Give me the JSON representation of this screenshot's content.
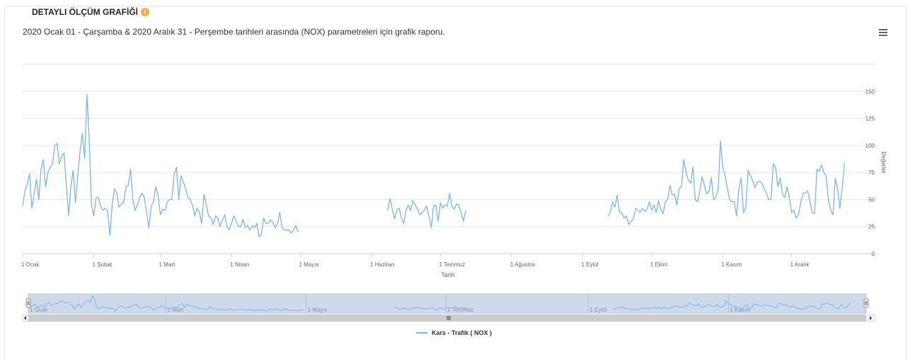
{
  "panel": {
    "title": "DETAYLI ÖLÇÜM GRAFİĞİ",
    "badge": "i"
  },
  "subtitle": "2020 Ocak 01 - Çarşamba & 2020 Aralık 31 - Perşembe tarihleri arasında (NOX) parametreleri için grafik raporu.",
  "menu_icon": "hamburger-menu-icon",
  "colors": {
    "series": "#7cb5ec",
    "navigator_mask": "#cfd9ec",
    "grid": "#e6e6e6"
  },
  "chart_data": {
    "type": "line",
    "title": "",
    "xlabel": "Tarih",
    "ylabel": "Değerler",
    "ylim": [
      0,
      175
    ],
    "yticks": [
      0,
      25,
      50,
      75,
      100,
      125,
      150
    ],
    "xlim_days": [
      0,
      365
    ],
    "xtick_labels": [
      {
        "label": "1 Ocak",
        "day": 0
      },
      {
        "label": "1 Şubat",
        "day": 31
      },
      {
        "label": "1 Mart",
        "day": 60
      },
      {
        "label": "1 Nisan",
        "day": 91
      },
      {
        "label": "1 Mayıs",
        "day": 121
      },
      {
        "label": "1 Haziran",
        "day": 152
      },
      {
        "label": "1 Temmuz",
        "day": 182
      },
      {
        "label": "1 Ağustos",
        "day": 213
      },
      {
        "label": "1 Eylül",
        "day": 244
      },
      {
        "label": "1 Ekim",
        "day": 274
      },
      {
        "label": "1 Kasım",
        "day": 305
      },
      {
        "label": "1 Aralık",
        "day": 335
      }
    ],
    "navigator_labels": [
      {
        "label": "1 Ocak",
        "day": 0
      },
      {
        "label": "1 Mart",
        "day": 60
      },
      {
        "label": "1 Mayıs",
        "day": 121
      },
      {
        "label": "1 Temmuz",
        "day": 182
      },
      {
        "label": "1 Eylül",
        "day": 244
      },
      {
        "label": "1 Kasım",
        "day": 305
      }
    ],
    "grid": true,
    "legend_position": "bottom-center",
    "series": [
      {
        "name": "Kars - Trafik ( NOX )",
        "segments": [
          [
            [
              0,
              44
            ],
            [
              1,
              58
            ],
            [
              2,
              64
            ],
            [
              3,
              74
            ],
            [
              4,
              42
            ],
            [
              5,
              55
            ],
            [
              6,
              69
            ],
            [
              7,
              50
            ],
            [
              8,
              78
            ],
            [
              9,
              87
            ],
            [
              10,
              62
            ],
            [
              11,
              75
            ],
            [
              12,
              80
            ],
            [
              13,
              83
            ],
            [
              14,
              100
            ],
            [
              15,
              102
            ],
            [
              16,
              83
            ],
            [
              17,
              90
            ],
            [
              18,
              93
            ],
            [
              19,
              65
            ],
            [
              20,
              35
            ],
            [
              21,
              62
            ],
            [
              22,
              77
            ],
            [
              23,
              47
            ],
            [
              24,
              72
            ],
            [
              25,
              95
            ],
            [
              26,
              111
            ],
            [
              27,
              88
            ],
            [
              28,
              147
            ],
            [
              29,
              105
            ],
            [
              30,
              45
            ],
            [
              31,
              35
            ],
            [
              32,
              52
            ],
            [
              33,
              52
            ],
            [
              34,
              44
            ],
            [
              35,
              40
            ],
            [
              36,
              42
            ],
            [
              37,
              40
            ],
            [
              38,
              17
            ],
            [
              39,
              45
            ],
            [
              40,
              60
            ],
            [
              41,
              56
            ],
            [
              42,
              43
            ],
            [
              43,
              46
            ],
            [
              44,
              47
            ],
            [
              45,
              62
            ],
            [
              46,
              63
            ],
            [
              47,
              78
            ],
            [
              48,
              50
            ],
            [
              49,
              40
            ],
            [
              50,
              45
            ],
            [
              51,
              52
            ],
            [
              52,
              56
            ],
            [
              53,
              52
            ],
            [
              54,
              38
            ],
            [
              55,
              24
            ],
            [
              56,
              44
            ],
            [
              57,
              48
            ],
            [
              58,
              62
            ],
            [
              59,
              54
            ],
            [
              60,
              36
            ],
            [
              61,
              41
            ],
            [
              62,
              40
            ],
            [
              63,
              48
            ],
            [
              64,
              50
            ],
            [
              65,
              50
            ],
            [
              66,
              73
            ],
            [
              67,
              80
            ],
            [
              68,
              50
            ],
            [
              69,
              72
            ],
            [
              70,
              66
            ],
            [
              71,
              60
            ],
            [
              72,
              52
            ],
            [
              73,
              50
            ],
            [
              74,
              45
            ],
            [
              75,
              35
            ],
            [
              76,
              42
            ],
            [
              77,
              38
            ],
            [
              78,
              28
            ],
            [
              79,
              55
            ],
            [
              80,
              45
            ],
            [
              81,
              35
            ],
            [
              82,
              33
            ],
            [
              83,
              27
            ],
            [
              84,
              35
            ],
            [
              85,
              33
            ],
            [
              86,
              25
            ],
            [
              87,
              31
            ],
            [
              88,
              36
            ],
            [
              89,
              25
            ],
            [
              90,
              22
            ],
            [
              91,
              28
            ],
            [
              92,
              35
            ],
            [
              93,
              30
            ],
            [
              94,
              25
            ],
            [
              95,
              25
            ],
            [
              96,
              32
            ],
            [
              97,
              24
            ],
            [
              98,
              26
            ],
            [
              99,
              22
            ],
            [
              100,
              26
            ],
            [
              101,
              24
            ],
            [
              102,
              28
            ],
            [
              103,
              16
            ],
            [
              104,
              18
            ],
            [
              105,
              33
            ],
            [
              106,
              28
            ],
            [
              107,
              28
            ],
            [
              108,
              31
            ],
            [
              109,
              29
            ],
            [
              110,
              24
            ],
            [
              111,
              28
            ],
            [
              112,
              38
            ],
            [
              113,
              24
            ],
            [
              114,
              22
            ],
            [
              115,
              22
            ],
            [
              116,
              22
            ],
            [
              117,
              19
            ],
            [
              118,
              22
            ],
            [
              119,
              26
            ],
            [
              120,
              20
            ]
          ],
          [
            [
              159,
              40
            ],
            [
              160,
              51
            ],
            [
              161,
              41
            ],
            [
              162,
              32
            ],
            [
              163,
              40
            ],
            [
              164,
              42
            ],
            [
              165,
              33
            ],
            [
              166,
              28
            ],
            [
              167,
              40
            ],
            [
              168,
              45
            ],
            [
              169,
              40
            ],
            [
              170,
              49
            ],
            [
              171,
              45
            ],
            [
              172,
              41
            ],
            [
              173,
              36
            ],
            [
              174,
              38
            ],
            [
              175,
              40
            ],
            [
              176,
              44
            ],
            [
              177,
              34
            ],
            [
              178,
              24
            ],
            [
              179,
              44
            ],
            [
              180,
              45
            ],
            [
              181,
              30
            ],
            [
              182,
              47
            ],
            [
              183,
              42
            ],
            [
              184,
              45
            ],
            [
              185,
              44
            ],
            [
              186,
              56
            ],
            [
              187,
              44
            ],
            [
              188,
              41
            ],
            [
              189,
              46
            ],
            [
              190,
              45
            ],
            [
              191,
              38
            ],
            [
              192,
              30
            ],
            [
              193,
              40
            ]
          ],
          [
            [
              255,
              35
            ],
            [
              256,
              38
            ],
            [
              257,
              48
            ],
            [
              258,
              43
            ],
            [
              259,
              54
            ],
            [
              260,
              38
            ],
            [
              261,
              38
            ],
            [
              262,
              33
            ],
            [
              263,
              35
            ],
            [
              264,
              27
            ],
            [
              265,
              30
            ],
            [
              266,
              32
            ],
            [
              267,
              42
            ],
            [
              268,
              40
            ],
            [
              269,
              38
            ],
            [
              270,
              42
            ],
            [
              271,
              39
            ],
            [
              272,
              41
            ],
            [
              273,
              48
            ],
            [
              274,
              40
            ],
            [
              275,
              45
            ],
            [
              276,
              38
            ],
            [
              277,
              49
            ],
            [
              278,
              41
            ],
            [
              279,
              37
            ],
            [
              280,
              48
            ],
            [
              281,
              50
            ],
            [
              282,
              63
            ],
            [
              283,
              54
            ],
            [
              284,
              55
            ],
            [
              285,
              45
            ],
            [
              286,
              60
            ],
            [
              287,
              62
            ],
            [
              288,
              87
            ],
            [
              289,
              75
            ],
            [
              290,
              68
            ],
            [
              291,
              65
            ],
            [
              292,
              80
            ],
            [
              293,
              50
            ],
            [
              294,
              48
            ],
            [
              295,
              58
            ],
            [
              296,
              71
            ],
            [
              297,
              63
            ],
            [
              298,
              55
            ],
            [
              299,
              58
            ],
            [
              300,
              70
            ],
            [
              301,
              50
            ],
            [
              302,
              52
            ],
            [
              303,
              60
            ],
            [
              304,
              104
            ],
            [
              305,
              80
            ],
            [
              306,
              72
            ],
            [
              307,
              60
            ],
            [
              308,
              50
            ],
            [
              309,
              48
            ],
            [
              310,
              48
            ],
            [
              311,
              35
            ],
            [
              312,
              60
            ],
            [
              313,
              70
            ],
            [
              314,
              38
            ],
            [
              315,
              42
            ],
            [
              316,
              77
            ],
            [
              317,
              72
            ],
            [
              318,
              68
            ],
            [
              319,
              61
            ],
            [
              320,
              66
            ],
            [
              321,
              67
            ],
            [
              322,
              65
            ],
            [
              323,
              60
            ],
            [
              324,
              56
            ],
            [
              325,
              50
            ],
            [
              326,
              50
            ],
            [
              327,
              83
            ],
            [
              328,
              80
            ],
            [
              329,
              62
            ],
            [
              330,
              70
            ],
            [
              331,
              55
            ],
            [
              332,
              52
            ],
            [
              333,
              62
            ],
            [
              334,
              52
            ],
            [
              335,
              38
            ],
            [
              336,
              40
            ],
            [
              337,
              33
            ],
            [
              338,
              36
            ],
            [
              339,
              48
            ],
            [
              340,
              56
            ],
            [
              341,
              56
            ],
            [
              342,
              58
            ],
            [
              343,
              48
            ],
            [
              344,
              38
            ],
            [
              345,
              37
            ],
            [
              346,
              78
            ],
            [
              347,
              76
            ],
            [
              348,
              82
            ],
            [
              349,
              75
            ],
            [
              350,
              72
            ],
            [
              351,
              50
            ],
            [
              352,
              40
            ],
            [
              353,
              36
            ],
            [
              354,
              70
            ],
            [
              355,
              60
            ],
            [
              356,
              42
            ],
            [
              357,
              60
            ],
            [
              358,
              84
            ]
          ]
        ]
      }
    ]
  }
}
